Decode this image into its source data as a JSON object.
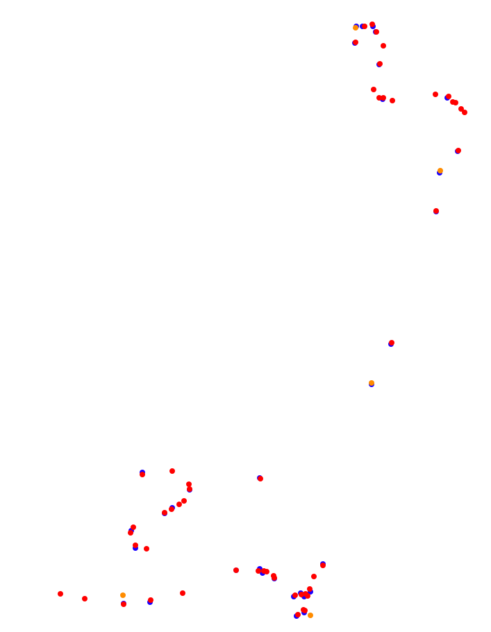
{
  "colors": {
    "background": "#ffffff",
    "blue": "#1a00ff",
    "red": "#ff0000",
    "orange": "#ff8c00"
  },
  "markers": [
    {
      "cluster": "north",
      "pts": [
        [
          513,
          38,
          "blue"
        ],
        [
          512,
          40,
          "orange"
        ],
        [
          522,
          38,
          "blue"
        ],
        [
          525,
          38,
          "red"
        ],
        [
          536,
          35,
          "red"
        ],
        [
          537,
          38,
          "blue"
        ],
        [
          541,
          46,
          "blue"
        ],
        [
          542,
          46,
          "red"
        ],
        [
          511,
          62,
          "blue"
        ],
        [
          512,
          61,
          "red"
        ],
        [
          552,
          66,
          "red"
        ],
        [
          546,
          93,
          "blue"
        ],
        [
          547,
          92,
          "red"
        ],
        [
          538,
          129,
          "red"
        ],
        [
          546,
          141,
          "red"
        ],
        [
          551,
          143,
          "blue"
        ],
        [
          552,
          141,
          "red"
        ],
        [
          565,
          145,
          "red"
        ],
        [
          627,
          136,
          "red"
        ],
        [
          644,
          141,
          "blue"
        ],
        [
          646,
          139,
          "red"
        ],
        [
          652,
          147,
          "red"
        ],
        [
          656,
          148,
          "red"
        ],
        [
          664,
          157,
          "red"
        ],
        [
          669,
          162,
          "red"
        ],
        [
          659,
          218,
          "blue"
        ],
        [
          660,
          217,
          "red"
        ],
        [
          633,
          249,
          "blue"
        ],
        [
          634,
          246,
          "orange"
        ],
        [
          628,
          305,
          "blue"
        ],
        [
          628,
          304,
          "red"
        ]
      ]
    },
    {
      "cluster": "middle",
      "pts": [
        [
          563,
          496,
          "blue"
        ],
        [
          564,
          494,
          "red"
        ],
        [
          535,
          554,
          "blue"
        ],
        [
          535,
          552,
          "orange"
        ]
      ]
    },
    {
      "cluster": "south-west",
      "pts": [
        [
          205,
          681,
          "blue"
        ],
        [
          205,
          684,
          "red"
        ],
        [
          248,
          679,
          "red"
        ],
        [
          374,
          689,
          "blue"
        ],
        [
          375,
          690,
          "red"
        ],
        [
          272,
          698,
          "red"
        ],
        [
          273,
          706,
          "blue"
        ],
        [
          273,
          705,
          "red"
        ],
        [
          265,
          722,
          "red"
        ],
        [
          258,
          727,
          "red"
        ],
        [
          248,
          732,
          "blue"
        ],
        [
          247,
          734,
          "red"
        ],
        [
          237,
          740,
          "blue"
        ],
        [
          237,
          739,
          "red"
        ],
        [
          192,
          760,
          "red"
        ],
        [
          189,
          765,
          "blue"
        ],
        [
          188,
          768,
          "red"
        ],
        [
          195,
          786,
          "red"
        ],
        [
          195,
          790,
          "blue"
        ],
        [
          211,
          791,
          "red"
        ],
        [
          87,
          856,
          "red"
        ],
        [
          122,
          863,
          "red"
        ],
        [
          177,
          858,
          "orange"
        ],
        [
          178,
          870,
          "blue"
        ],
        [
          178,
          871,
          "red"
        ],
        [
          216,
          868,
          "blue"
        ],
        [
          217,
          865,
          "red"
        ],
        [
          263,
          855,
          "red"
        ]
      ]
    },
    {
      "cluster": "south-east",
      "pts": [
        [
          340,
          822,
          "blue"
        ],
        [
          340,
          822,
          "red"
        ],
        [
          374,
          820,
          "blue"
        ],
        [
          372,
          823,
          "red"
        ],
        [
          378,
          826,
          "blue"
        ],
        [
          380,
          823,
          "red"
        ],
        [
          384,
          824,
          "red"
        ],
        [
          394,
          830,
          "red"
        ],
        [
          395,
          834,
          "blue"
        ],
        [
          395,
          833,
          "red"
        ],
        [
          465,
          813,
          "blue"
        ],
        [
          465,
          815,
          "red"
        ],
        [
          452,
          831,
          "red"
        ],
        [
          423,
          860,
          "blue"
        ],
        [
          425,
          858,
          "red"
        ],
        [
          433,
          855,
          "blue"
        ],
        [
          434,
          857,
          "red"
        ],
        [
          438,
          860,
          "blue"
        ],
        [
          440,
          856,
          "red"
        ],
        [
          446,
          849,
          "red"
        ],
        [
          447,
          853,
          "blue"
        ],
        [
          443,
          859,
          "red"
        ],
        [
          437,
          879,
          "red"
        ],
        [
          438,
          883,
          "blue"
        ],
        [
          439,
          880,
          "red"
        ],
        [
          427,
          888,
          "blue"
        ],
        [
          429,
          886,
          "red"
        ],
        [
          447,
          887,
          "orange"
        ]
      ]
    }
  ]
}
